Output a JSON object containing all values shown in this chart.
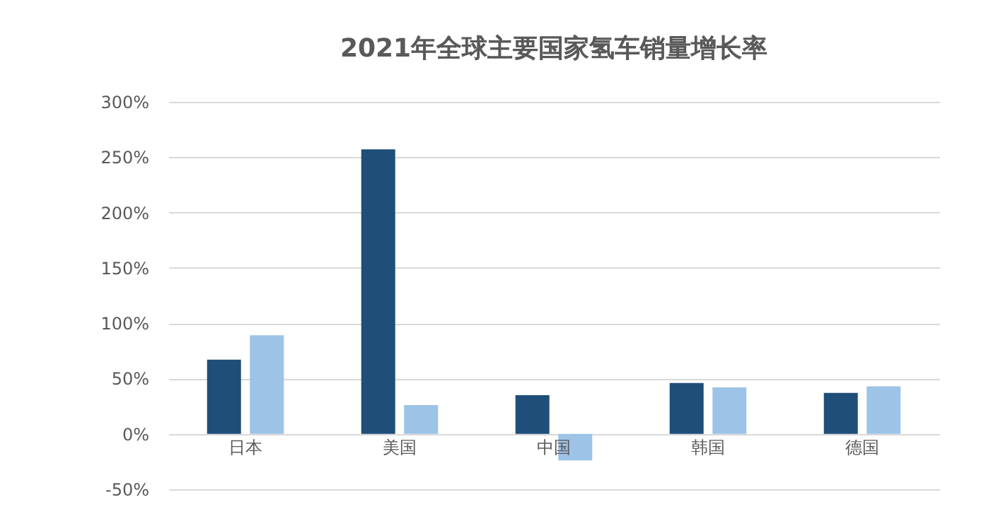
{
  "chart_data": {
    "type": "bar",
    "title": "2021年全球主要国家氢车销量增长率",
    "categories": [
      "日本",
      "美国",
      "中国",
      "韩国",
      "德国"
    ],
    "series": [
      {
        "color": "#1f4e79",
        "values": [
          67,
          257,
          35,
          46,
          37
        ]
      },
      {
        "color": "#9dc3e6",
        "values": [
          89,
          26,
          -24,
          42,
          43
        ]
      }
    ],
    "ylim": [
      -50,
      300
    ],
    "yticks": [
      {
        "value": -50,
        "label": "-50%"
      },
      {
        "value": 0,
        "label": "0%"
      },
      {
        "value": 50,
        "label": "50%"
      },
      {
        "value": 100,
        "label": "100%"
      },
      {
        "value": 150,
        "label": "150%"
      },
      {
        "value": 200,
        "label": "200%"
      },
      {
        "value": 250,
        "label": "250%"
      },
      {
        "value": 300,
        "label": "300%"
      }
    ],
    "grid": "y"
  }
}
